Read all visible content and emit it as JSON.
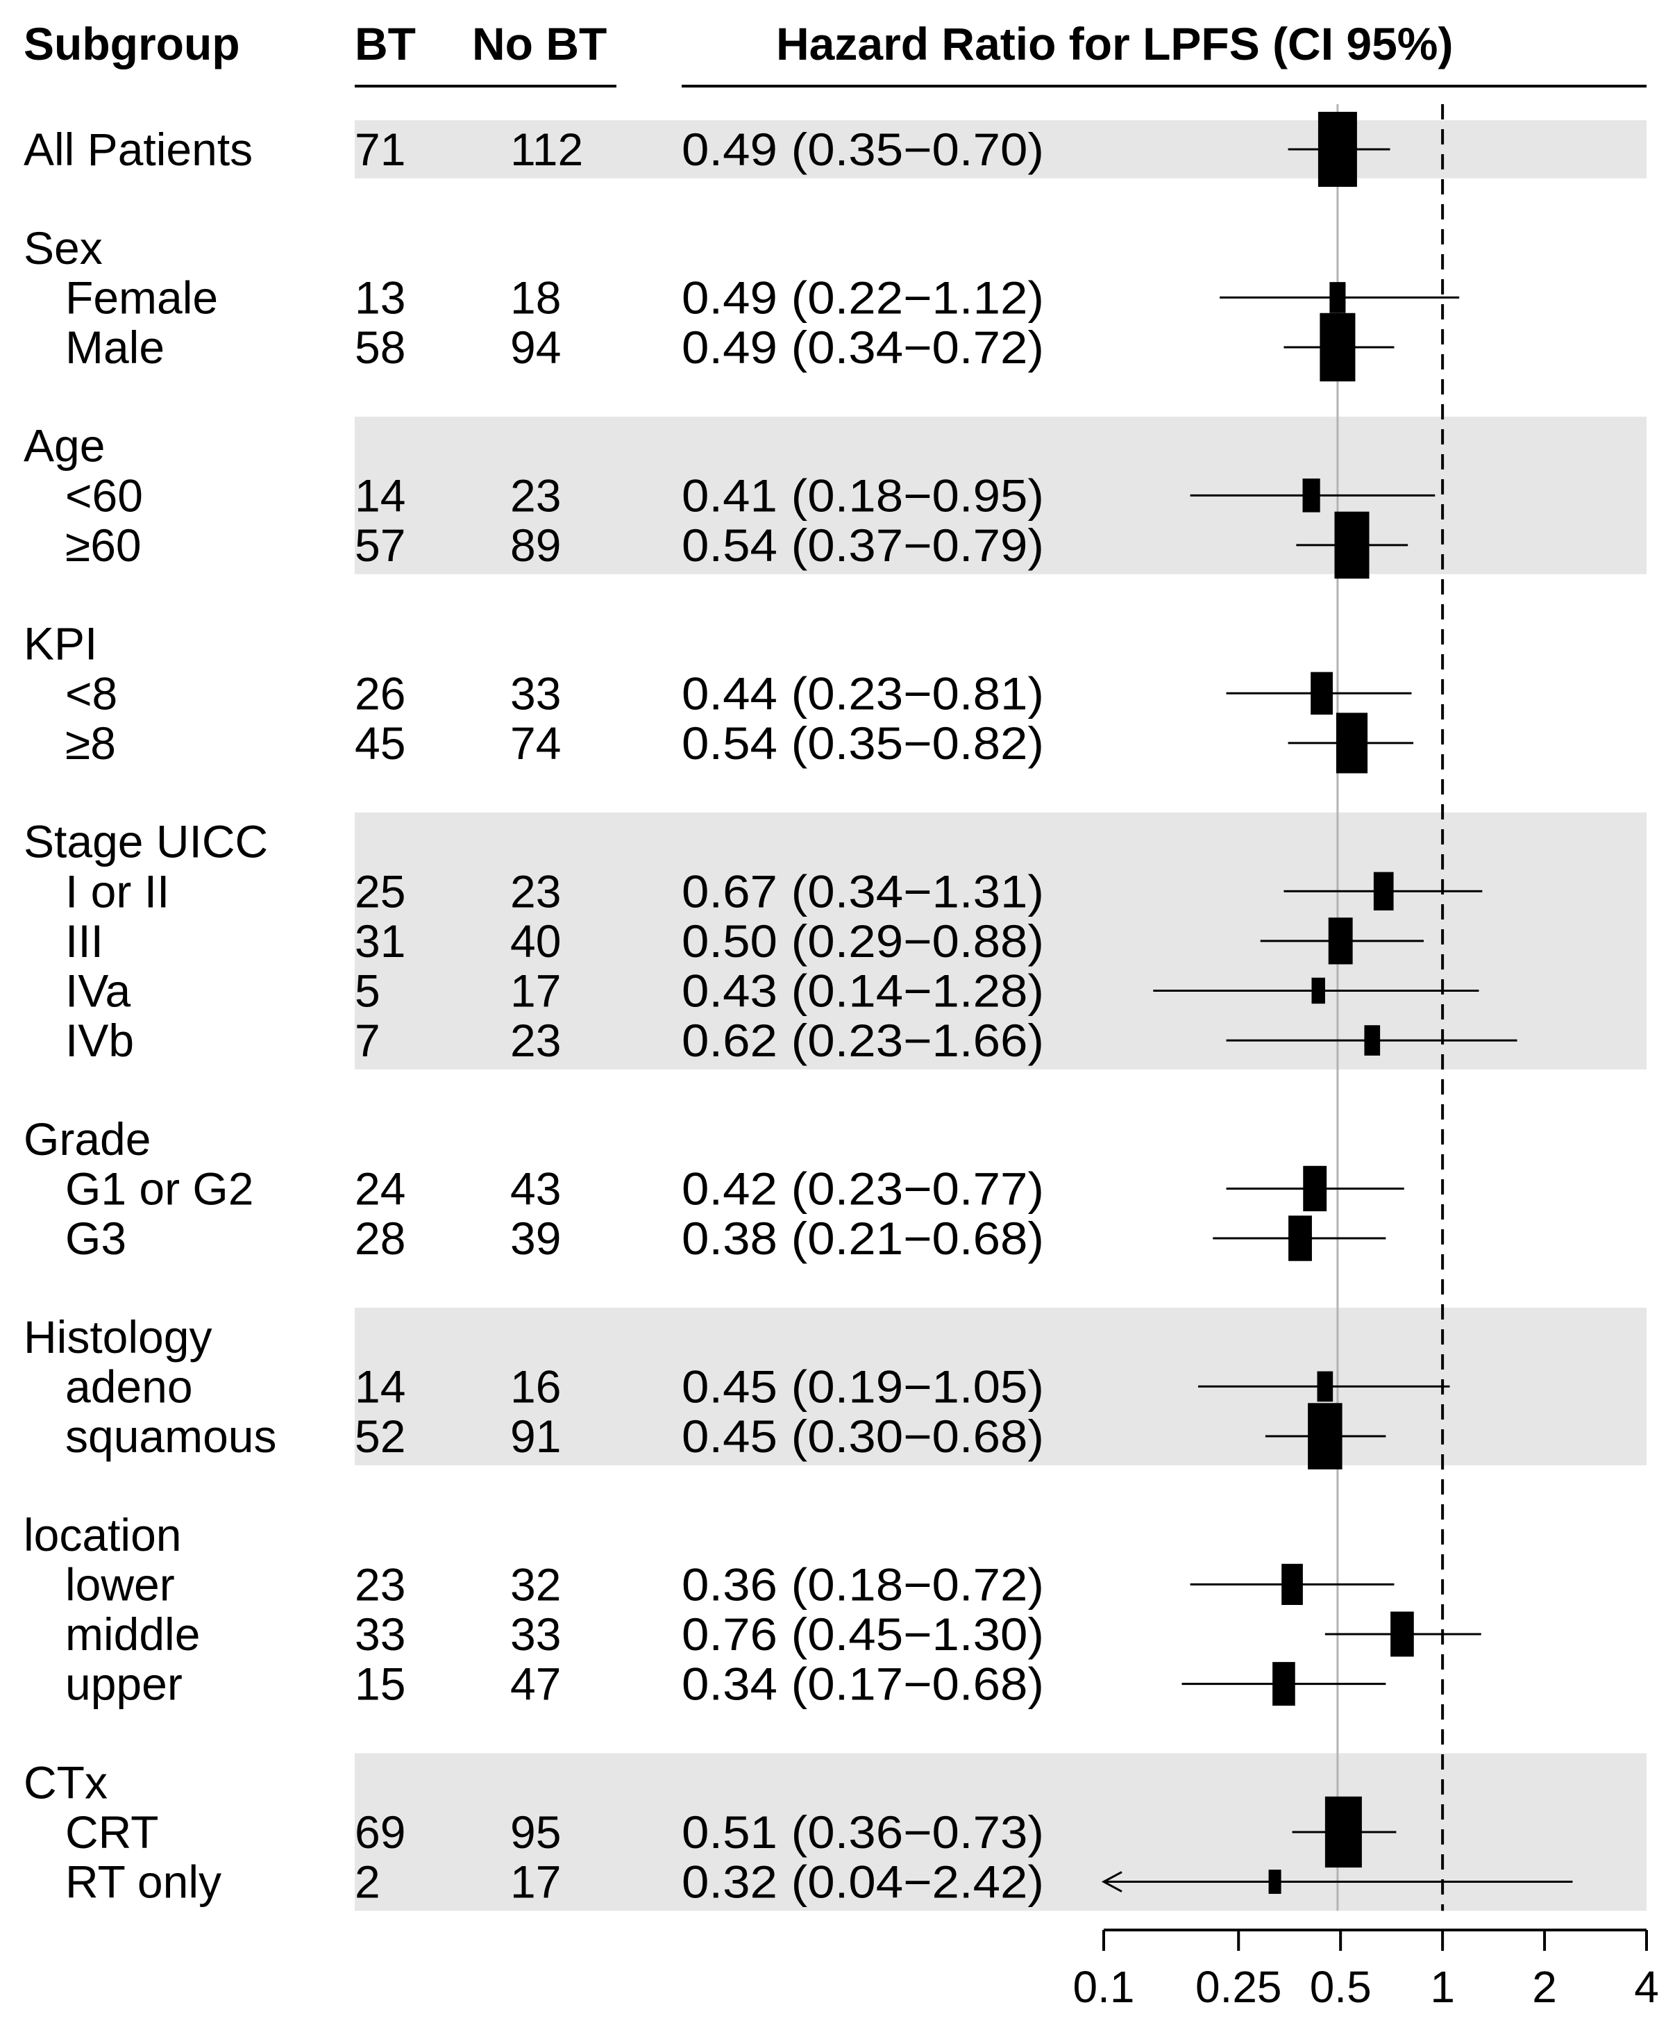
{
  "header": {
    "subgroup": "Subgroup",
    "bt": "BT",
    "no_bt": "No BT",
    "hr": "Hazard Ratio for LPFS (CI 95%)"
  },
  "chart_data": {
    "type": "forest",
    "title": "Hazard Ratio for LPFS (CI 95%)",
    "x_scale": "log2",
    "xlim": [
      0.1,
      4
    ],
    "ticks": [
      0.1,
      0.25,
      0.5,
      1,
      2,
      4
    ],
    "tick_labels": [
      "0.1",
      "0.25",
      "0.5",
      "1",
      "2",
      "4"
    ],
    "reference_line": 1,
    "overall_line": 0.49,
    "columns": [
      "Subgroup",
      "BT",
      "No BT",
      "Hazard Ratio for LPFS (CI 95%)"
    ],
    "groups": [
      {
        "label": "All Patients",
        "shaded": true,
        "is_overall": true,
        "rows": [
          {
            "label": "All Patients",
            "bt": "71",
            "no_bt": "112",
            "text": "0.49 (0.35−0.70)",
            "hr": 0.49,
            "lo": 0.35,
            "hi": 0.7
          }
        ]
      },
      {
        "label": "Sex",
        "shaded": false,
        "rows": [
          {
            "label": "Female",
            "bt": "13",
            "no_bt": "18",
            "text": "0.49 (0.22−1.12)",
            "hr": 0.49,
            "lo": 0.22,
            "hi": 1.12
          },
          {
            "label": "Male",
            "bt": "58",
            "no_bt": "94",
            "text": "0.49 (0.34−0.72)",
            "hr": 0.49,
            "lo": 0.34,
            "hi": 0.72
          }
        ]
      },
      {
        "label": "Age",
        "shaded": true,
        "rows": [
          {
            "label": "<60",
            "bt": "14",
            "no_bt": "23",
            "text": "0.41 (0.18−0.95)",
            "hr": 0.41,
            "lo": 0.18,
            "hi": 0.95
          },
          {
            "label": "≥60",
            "bt": "57",
            "no_bt": "89",
            "text": "0.54 (0.37−0.79)",
            "hr": 0.54,
            "lo": 0.37,
            "hi": 0.79
          }
        ]
      },
      {
        "label": "KPI",
        "shaded": false,
        "rows": [
          {
            "label": "<8",
            "bt": "26",
            "no_bt": "33",
            "text": "0.44 (0.23−0.81)",
            "hr": 0.44,
            "lo": 0.23,
            "hi": 0.81
          },
          {
            "label": "≥8",
            "bt": "45",
            "no_bt": "74",
            "text": "0.54 (0.35−0.82)",
            "hr": 0.54,
            "lo": 0.35,
            "hi": 0.82
          }
        ]
      },
      {
        "label": "Stage UICC",
        "shaded": true,
        "rows": [
          {
            "label": "I or II",
            "bt": "25",
            "no_bt": "23",
            "text": "0.67 (0.34−1.31)",
            "hr": 0.67,
            "lo": 0.34,
            "hi": 1.31
          },
          {
            "label": "III",
            "bt": "31",
            "no_bt": "40",
            "text": "0.50 (0.29−0.88)",
            "hr": 0.5,
            "lo": 0.29,
            "hi": 0.88
          },
          {
            "label": "IVa",
            "bt": "5",
            "no_bt": "17",
            "text": "0.43 (0.14−1.28)",
            "hr": 0.43,
            "lo": 0.14,
            "hi": 1.28
          },
          {
            "label": "IVb",
            "bt": "7",
            "no_bt": "23",
            "text": "0.62 (0.23−1.66)",
            "hr": 0.62,
            "lo": 0.23,
            "hi": 1.66
          }
        ]
      },
      {
        "label": "Grade",
        "shaded": false,
        "rows": [
          {
            "label": "G1 or G2",
            "bt": "24",
            "no_bt": "43",
            "text": "0.42 (0.23−0.77)",
            "hr": 0.42,
            "lo": 0.23,
            "hi": 0.77
          },
          {
            "label": "G3",
            "bt": "28",
            "no_bt": "39",
            "text": "0.38 (0.21−0.68)",
            "hr": 0.38,
            "lo": 0.21,
            "hi": 0.68
          }
        ]
      },
      {
        "label": "Histology",
        "shaded": true,
        "rows": [
          {
            "label": "adeno",
            "bt": "14",
            "no_bt": "16",
            "text": "0.45 (0.19−1.05)",
            "hr": 0.45,
            "lo": 0.19,
            "hi": 1.05
          },
          {
            "label": "squamous",
            "bt": "52",
            "no_bt": "91",
            "text": "0.45 (0.30−0.68)",
            "hr": 0.45,
            "lo": 0.3,
            "hi": 0.68
          }
        ]
      },
      {
        "label": "location",
        "shaded": false,
        "rows": [
          {
            "label": "lower",
            "bt": "23",
            "no_bt": "32",
            "text": "0.36 (0.18−0.72)",
            "hr": 0.36,
            "lo": 0.18,
            "hi": 0.72
          },
          {
            "label": "middle",
            "bt": "33",
            "no_bt": "33",
            "text": "0.76 (0.45−1.30)",
            "hr": 0.76,
            "lo": 0.45,
            "hi": 1.3
          },
          {
            "label": "upper",
            "bt": "15",
            "no_bt": "47",
            "text": "0.34 (0.17−0.68)",
            "hr": 0.34,
            "lo": 0.17,
            "hi": 0.68
          }
        ]
      },
      {
        "label": "CTx",
        "shaded": true,
        "rows": [
          {
            "label": "CRT",
            "bt": "69",
            "no_bt": "95",
            "text": "0.51 (0.36−0.73)",
            "hr": 0.51,
            "lo": 0.36,
            "hi": 0.73
          },
          {
            "label": "RT only",
            "bt": "2",
            "no_bt": "17",
            "text": "0.32 (0.04−2.42)",
            "hr": 0.32,
            "lo": 0.04,
            "hi": 2.42,
            "arrow_left": true
          }
        ]
      }
    ]
  },
  "colors": {
    "band": "#e6e6e6",
    "overall_line": "#b3b3b3",
    "ink": "#000000",
    "background": "#ffffff"
  }
}
